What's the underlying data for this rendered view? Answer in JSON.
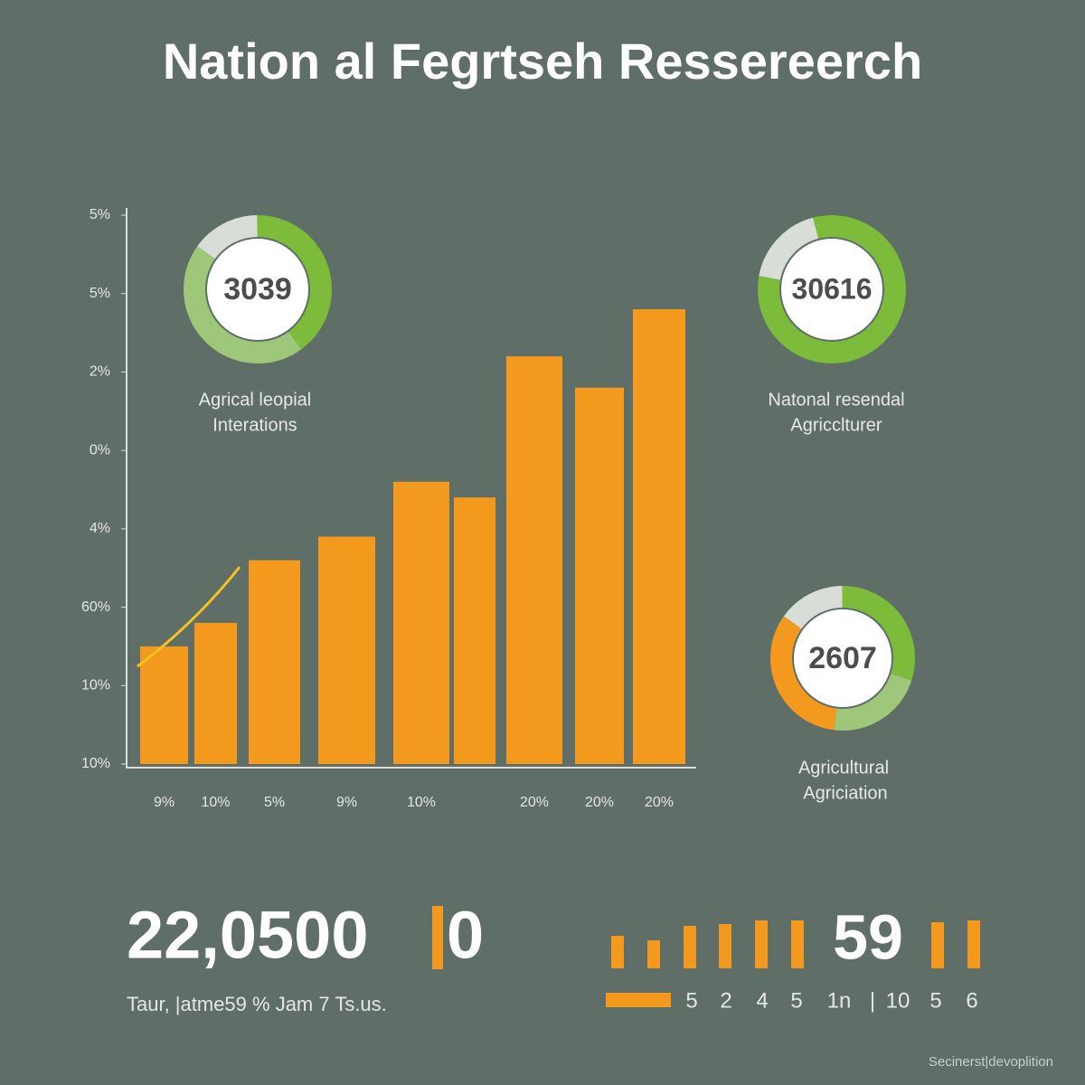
{
  "chart_data": {
    "type": "bar",
    "title": "Nation al Fegrtseh Ressereerch",
    "categories": [
      "9%",
      "10%",
      "5%",
      "9%",
      "10%",
      null,
      "20%",
      "20%",
      "20%"
    ],
    "values": [
      1.5,
      1.8,
      2.6,
      2.9,
      3.6,
      3.4,
      5.2,
      4.8,
      5.8
    ],
    "color": "#f39a1e",
    "ylim": [
      0,
      7
    ],
    "yticks": [
      {
        "value": 0,
        "label": "10%"
      },
      {
        "value": 1,
        "label": "10%"
      },
      {
        "value": 2,
        "label": "60%"
      },
      {
        "value": 3,
        "label": "4%"
      },
      {
        "value": 4,
        "label": "0%"
      },
      {
        "value": 5,
        "label": "2%"
      },
      {
        "value": 6,
        "label": "5%"
      },
      {
        "value": 7,
        "label": "5%"
      }
    ]
  },
  "donuts": [
    {
      "number": "3039",
      "caption": [
        "Agrical leopial",
        "Interations"
      ]
    },
    {
      "number": "30616",
      "caption": [
        "Natonal resendal",
        "Agricclturer"
      ]
    },
    {
      "number": "2607",
      "caption": [
        "Agricultural",
        "Agriciation"
      ]
    }
  ],
  "stat": {
    "number_left": "22,0500",
    "number_right": "0",
    "caption": "Taur, |atme59 % Jam 7 Ts.us."
  },
  "mini": {
    "number": "59",
    "labels": [
      "5",
      "2",
      "4",
      "5",
      "1n",
      "|",
      "10",
      "5",
      "6"
    ]
  },
  "footer": "Secinerst|devoplition"
}
